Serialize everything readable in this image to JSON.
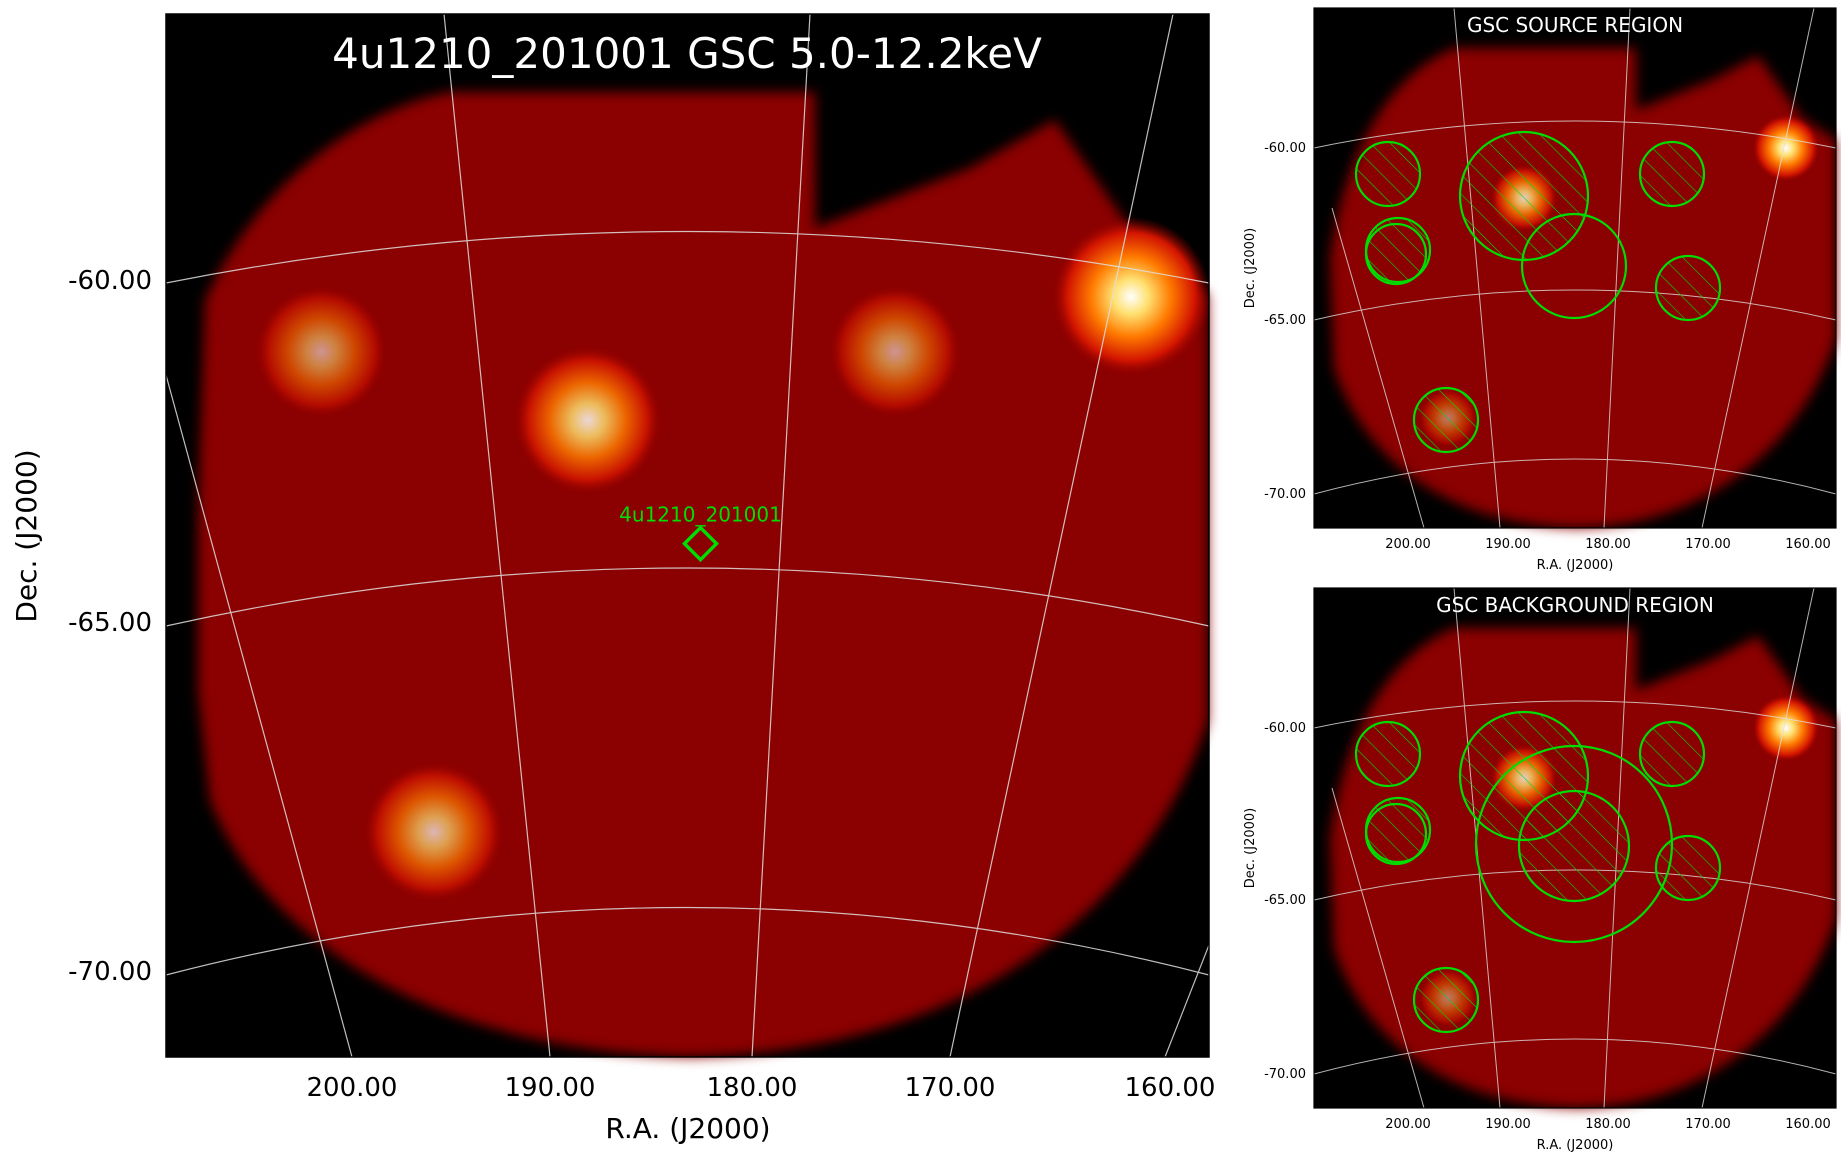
{
  "figure": {
    "type": "sky-image",
    "colors": {
      "background": "#ffffff",
      "sky": "#8b0000",
      "grid": "#e0e0e0",
      "region": "#00dd00",
      "title": "#ffffff"
    }
  },
  "chart_data": [
    {
      "type": "heatmap",
      "panel": "main",
      "title": "4u1210_201001 GSC 5.0-12.2keV",
      "xlabel": "R.A. (J2000)",
      "ylabel": "Dec. (J2000)",
      "x_ticks": [
        "200.00",
        "190.00",
        "180.00",
        "170.00",
        "160.00"
      ],
      "y_ticks": [
        "-60.00",
        "-65.00",
        "-70.00"
      ],
      "grid": true,
      "sources": [
        {
          "ra": 201.5,
          "dec": -61.0,
          "brightness": 0.35
        },
        {
          "ra": 188.5,
          "dec": -62.0,
          "brightness": 0.75
        },
        {
          "ra": 173.5,
          "dec": -61.0,
          "brightness": 0.35
        },
        {
          "ra": 162.0,
          "dec": -60.2,
          "brightness": 1.0
        },
        {
          "ra": 196.0,
          "dec": -68.0,
          "brightness": 0.55
        }
      ],
      "marker": {
        "label": "4u1210_201001",
        "ra": 183.0,
        "dec": -63.8,
        "shape": "diamond"
      }
    },
    {
      "type": "heatmap",
      "panel": "source",
      "title": "GSC SOURCE REGION",
      "xlabel": "R.A. (J2000)",
      "ylabel": "Dec. (J2000)",
      "x_ticks": [
        "200.00",
        "190.00",
        "180.00",
        "170.00",
        "160.00"
      ],
      "y_ticks": [
        "-60.00",
        "-65.00",
        "-70.00"
      ],
      "grid": true
    },
    {
      "type": "heatmap",
      "panel": "background",
      "title": "GSC BACKGROUND REGION",
      "xlabel": "R.A. (J2000)",
      "ylabel": "Dec. (J2000)",
      "x_ticks": [
        "200.00",
        "190.00",
        "180.00",
        "170.00",
        "160.00"
      ],
      "y_ticks": [
        "-60.00",
        "-65.00",
        "-70.00"
      ],
      "grid": true
    }
  ]
}
